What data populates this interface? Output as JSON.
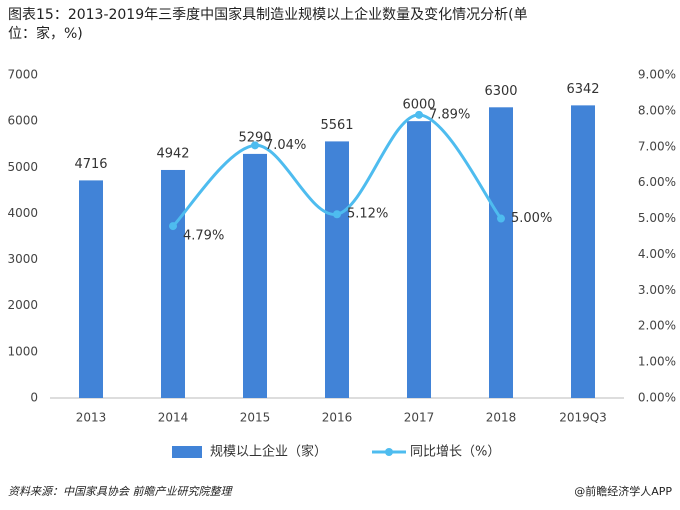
{
  "chart_data": {
    "type": "bar-line",
    "title": "图表15：2013-2019年三季度中国家具制造业规模以上企业数量及变化情况分析(单位：家，%)",
    "categories": [
      "2013",
      "2014",
      "2015",
      "2016",
      "2017",
      "2018",
      "2019Q3"
    ],
    "series": [
      {
        "name": "规模以上企业（家）",
        "type": "bar",
        "color": "#4183d7",
        "values": [
          4716,
          4942,
          5290,
          5561,
          6000,
          6300,
          6342
        ]
      },
      {
        "name": "同比增长（%）",
        "type": "line",
        "axis": "y2",
        "color": "#4ebcef",
        "values": [
          null,
          4.79,
          7.04,
          5.12,
          7.89,
          5.0,
          null
        ],
        "value_labels": [
          null,
          "4.79%",
          "7.04%",
          "5.12%",
          "7.89%",
          "5.00%",
          null
        ]
      }
    ],
    "ylim": [
      0,
      7000
    ],
    "yticks": [
      0,
      1000,
      2000,
      3000,
      4000,
      5000,
      6000,
      7000
    ],
    "y2lim": [
      0,
      9
    ],
    "y2ticks": [
      {
        "value": 0,
        "label": "0.00%"
      },
      {
        "value": 1,
        "label": "1.00%"
      },
      {
        "value": 2,
        "label": "2.00%"
      },
      {
        "value": 3,
        "label": "3.00%"
      },
      {
        "value": 4,
        "label": "4.00%"
      },
      {
        "value": 5,
        "label": "5.00%"
      },
      {
        "value": 6,
        "label": "6.00%"
      },
      {
        "value": 7,
        "label": "7.00%"
      },
      {
        "value": 8,
        "label": "8.00%"
      },
      {
        "value": 9,
        "label": "9.00%"
      }
    ],
    "legend": "bottom",
    "grid": false,
    "source": "资料来源：中国家具协会 前瞻产业研究院整理",
    "brand": "@前瞻经济学人APP"
  }
}
